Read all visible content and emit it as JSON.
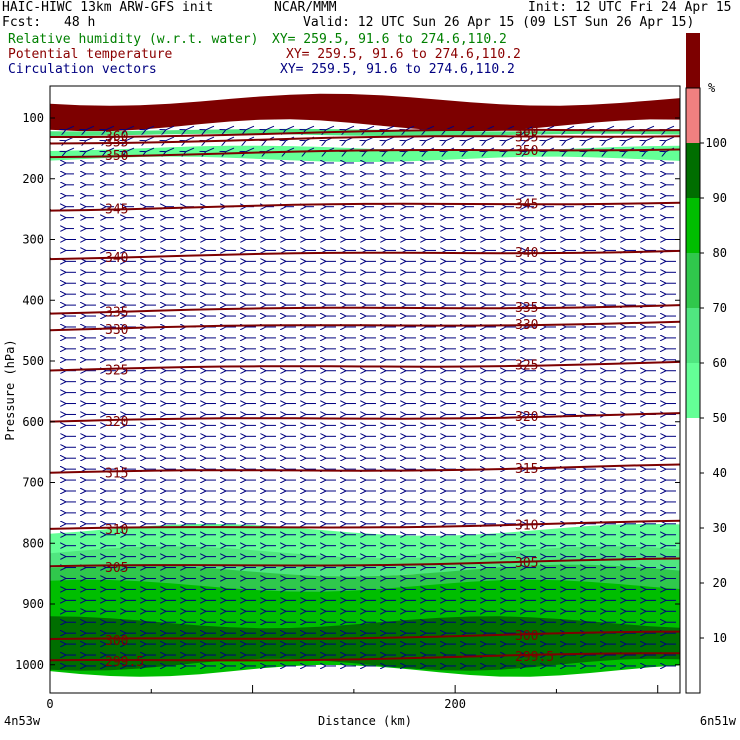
{
  "header": {
    "title_left": "HAIC-HIWC 13km ARW-GFS init",
    "title_center": "NCAR/MMM",
    "init": "Init: 12 UTC Fri 24 Apr 15",
    "fcst_label": "Fcst:",
    "fcst_value": "48 h",
    "valid": "Valid: 12 UTC Sun 26 Apr 15 (09 LST Sun 26 Apr 15)"
  },
  "legend_lines": [
    {
      "label": "Relative humidity (w.r.t. water)",
      "xy": "XY= 259.5, 91.6 to 274.6,110.2",
      "color": "#008000"
    },
    {
      "label": "Potential temperature",
      "xy": "XY= 259.5, 91.6 to 274.6,110.2",
      "color": "#8b0000"
    },
    {
      "label": "Circulation vectors",
      "xy": "XY= 259.5, 91.6 to 274.6,110.2",
      "color": "#000080"
    }
  ],
  "chart_data": {
    "type": "heatmap",
    "xlabel": "Distance (km)",
    "ylabel": "Pressure (hPa)",
    "xlim": [
      0,
      311
    ],
    "ylim": [
      1050,
      70
    ],
    "x_ticks": [
      0,
      200
    ],
    "x_end_labels": [
      "4n53w",
      "6n51w"
    ],
    "y_ticks": [
      100,
      200,
      300,
      400,
      500,
      600,
      700,
      800,
      900,
      1000
    ],
    "colorbar": {
      "unit": "%",
      "tick_labels": [
        10,
        20,
        30,
        40,
        50,
        60,
        70,
        80,
        90,
        100
      ],
      "bands": [
        {
          "from": 50,
          "to": 60,
          "color": "#64ff96"
        },
        {
          "from": 60,
          "to": 70,
          "color": "#50e680"
        },
        {
          "from": 70,
          "to": 80,
          "color": "#30c84c"
        },
        {
          "from": 80,
          "to": 90,
          "color": "#00be00"
        },
        {
          "from": 90,
          "to": 100,
          "color": "#006e00"
        },
        {
          "from": 100,
          "to": 110,
          "color": "#f08080"
        },
        {
          "from": 110,
          "to": 120,
          "color": "#7d0000"
        }
      ]
    },
    "rh_fields": [
      {
        "level": 110,
        "p_top": 70,
        "p_bottom": 112,
        "color": "#7d0000"
      },
      {
        "level": 60,
        "p_top": 120,
        "p_bottom": 128,
        "color": "#50e680"
      },
      {
        "level": 50,
        "p_top": 150,
        "p_bottom": 168,
        "color": "#64ff96"
      },
      {
        "level": 50,
        "p_top": 778,
        "p_bottom": 845,
        "color": "#64ff96"
      },
      {
        "level": 60,
        "p_top": 815,
        "p_bottom": 860,
        "color": "#50e680"
      },
      {
        "level": 70,
        "p_top": 845,
        "p_bottom": 990,
        "color": "#30c84c"
      },
      {
        "level": 80,
        "p_top": 870,
        "p_bottom": 1010,
        "color": "#00be00"
      },
      {
        "level": 90,
        "p_top": 930,
        "p_bottom": 1000,
        "color": "#006e00"
      }
    ],
    "theta_contours": [
      {
        "value": "360",
        "p": 130
      },
      {
        "value": "355",
        "p": 140
      },
      {
        "value": "350",
        "p": 162
      },
      {
        "value": "345",
        "p": 250
      },
      {
        "value": "340",
        "p": 330
      },
      {
        "value": "335",
        "p": 420
      },
      {
        "value": "330",
        "p": 448
      },
      {
        "value": "325",
        "p": 515
      },
      {
        "value": "320",
        "p": 600
      },
      {
        "value": "315",
        "p": 685
      },
      {
        "value": "310",
        "p": 778
      },
      {
        "value": "305",
        "p": 840
      },
      {
        "value": "300",
        "p": 960
      },
      {
        "value": "299.5",
        "p": 995
      }
    ],
    "vector_color": "#000080"
  }
}
